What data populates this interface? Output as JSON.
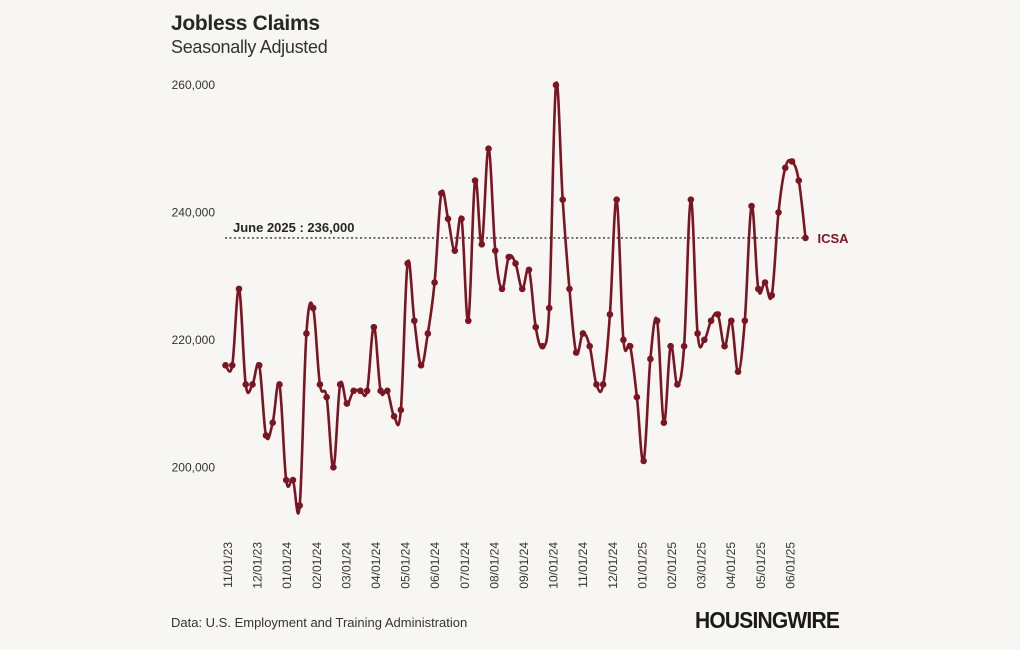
{
  "title": "Jobless Claims",
  "subtitle": "Seasonally Adjusted",
  "source": "Data: U.S. Employment and Training Administration",
  "brand": "HOUSINGWIRE",
  "colors": {
    "series": "#7b1523",
    "reference_line": "#333333",
    "background": "#f8f6f3",
    "text": "#333333"
  },
  "chart_data": {
    "type": "line",
    "title": "",
    "xlabel": "",
    "ylabel": "",
    "ylim": [
      190000,
      260000
    ],
    "y_ticks": [
      200000,
      220000,
      240000,
      260000
    ],
    "y_tick_labels": [
      "200,000",
      "220,000",
      "240,000",
      "260,000"
    ],
    "x_tick_labels": [
      "11/01/23",
      "12/01/23",
      "01/01/24",
      "02/01/24",
      "03/01/24",
      "04/01/24",
      "05/01/24",
      "06/01/24",
      "07/01/24",
      "08/01/24",
      "09/01/24",
      "10/01/24",
      "11/01/24",
      "12/01/24",
      "01/01/25",
      "02/01/25",
      "03/01/25",
      "04/01/25",
      "05/01/25",
      "06/01/25"
    ],
    "grid": false,
    "reference_line": {
      "label": "June 2025 : 236,000",
      "value": 236000
    },
    "series": [
      {
        "name": "ICSA",
        "values": [
          216000,
          216000,
          228000,
          213000,
          213000,
          216000,
          205000,
          207000,
          213000,
          198000,
          198000,
          194000,
          221000,
          225000,
          213000,
          211000,
          200000,
          213000,
          210000,
          212000,
          212000,
          212000,
          222000,
          212000,
          212000,
          208000,
          209000,
          232000,
          223000,
          216000,
          221000,
          229000,
          243000,
          239000,
          234000,
          239000,
          223000,
          245000,
          235000,
          250000,
          234000,
          228000,
          233000,
          232000,
          228000,
          231000,
          222000,
          219000,
          225000,
          260000,
          242000,
          228000,
          218000,
          221000,
          219000,
          213000,
          213000,
          224000,
          242000,
          220000,
          219000,
          211000,
          201000,
          217000,
          223000,
          207000,
          219000,
          213000,
          219000,
          242000,
          221000,
          220000,
          223000,
          224000,
          219000,
          223000,
          215000,
          223000,
          241000,
          228000,
          229000,
          227000,
          240000,
          247000,
          248000,
          245000,
          236000
        ]
      }
    ]
  }
}
